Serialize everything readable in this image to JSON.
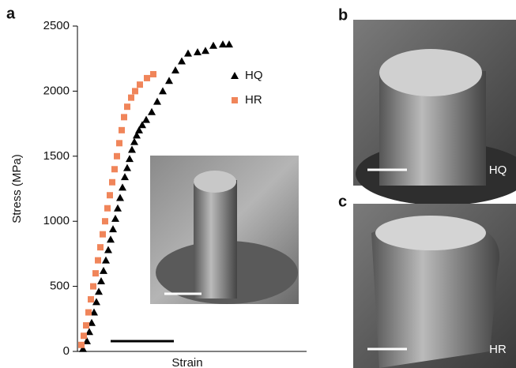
{
  "chart_data": {
    "type": "scatter",
    "xlabel": "Strain",
    "ylabel": "Stress (MPa)",
    "xlim": [
      0,
      290
    ],
    "ylim": [
      0,
      2500
    ],
    "yticks": [
      0,
      500,
      1000,
      1500,
      2000,
      2500
    ],
    "series": [
      {
        "name": "HQ",
        "color": "#000000",
        "marker": "triangle",
        "x": [
          7,
          12,
          15,
          18,
          21,
          24,
          27,
          30,
          33,
          36,
          39,
          42,
          45,
          48,
          51,
          54,
          57,
          60,
          63,
          66,
          69,
          72,
          75,
          78,
          82,
          87,
          94,
          101,
          108,
          116,
          124,
          132,
          140,
          152,
          162,
          172,
          184,
          192
        ],
        "values": [
          20,
          80,
          150,
          220,
          300,
          380,
          460,
          540,
          620,
          700,
          780,
          860,
          940,
          1020,
          1100,
          1180,
          1260,
          1340,
          1410,
          1480,
          1550,
          1610,
          1660,
          1700,
          1740,
          1780,
          1840,
          1920,
          2000,
          2080,
          2160,
          2230,
          2290,
          2300,
          2310,
          2350,
          2360,
          2360
        ]
      },
      {
        "name": "HR",
        "color": "#f0855a",
        "marker": "square",
        "x": [
          5,
          8,
          11,
          14,
          17,
          20,
          23,
          26,
          29,
          32,
          35,
          38,
          41,
          44,
          47,
          50,
          53,
          56,
          59,
          63,
          68,
          73,
          79,
          88,
          96
        ],
        "values": [
          50,
          120,
          200,
          300,
          400,
          500,
          600,
          700,
          800,
          900,
          1000,
          1100,
          1200,
          1300,
          1400,
          1500,
          1600,
          1700,
          1800,
          1880,
          1950,
          2000,
          2050,
          2100,
          2130
        ]
      }
    ]
  },
  "panel_labels": [
    "a",
    "b",
    "c"
  ],
  "image_labels": [
    "HQ",
    "HR"
  ]
}
